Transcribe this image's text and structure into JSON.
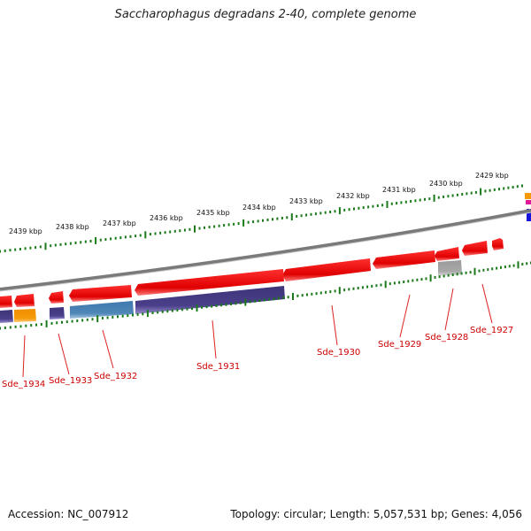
{
  "title": "Saccharophagus degradans 2-40, complete genome",
  "footer": {
    "accession": "Accession: NC_007912",
    "topology": "Topology: circular; Length: 5,057,531 bp; Genes: 4,056"
  },
  "kbp_labels": [
    "2429 kbp",
    "2430 kbp",
    "2431 kbp",
    "2432 kbp",
    "2433 kbp",
    "2434 kbp",
    "2435 kbp",
    "2436 kbp",
    "2437 kbp",
    "2438 kbp",
    "2439 kbp"
  ],
  "gene_labels": [
    "Sde_1927",
    "Sde_1928",
    "Sde_1929",
    "Sde_1930",
    "Sde_1931",
    "Sde_1932",
    "Sde_1933",
    "Sde_1934"
  ],
  "colors": {
    "forward_strand": "#ee1111",
    "cds_bar": "#4a3f8a",
    "teal_bar": "#4f86b8",
    "orange_bar": "#f59a0a",
    "gray_bar": "#a8a8a8",
    "tick_green": "#1a7a1a",
    "backbone": "#8a8a8a",
    "label_red": "#cc0000"
  }
}
